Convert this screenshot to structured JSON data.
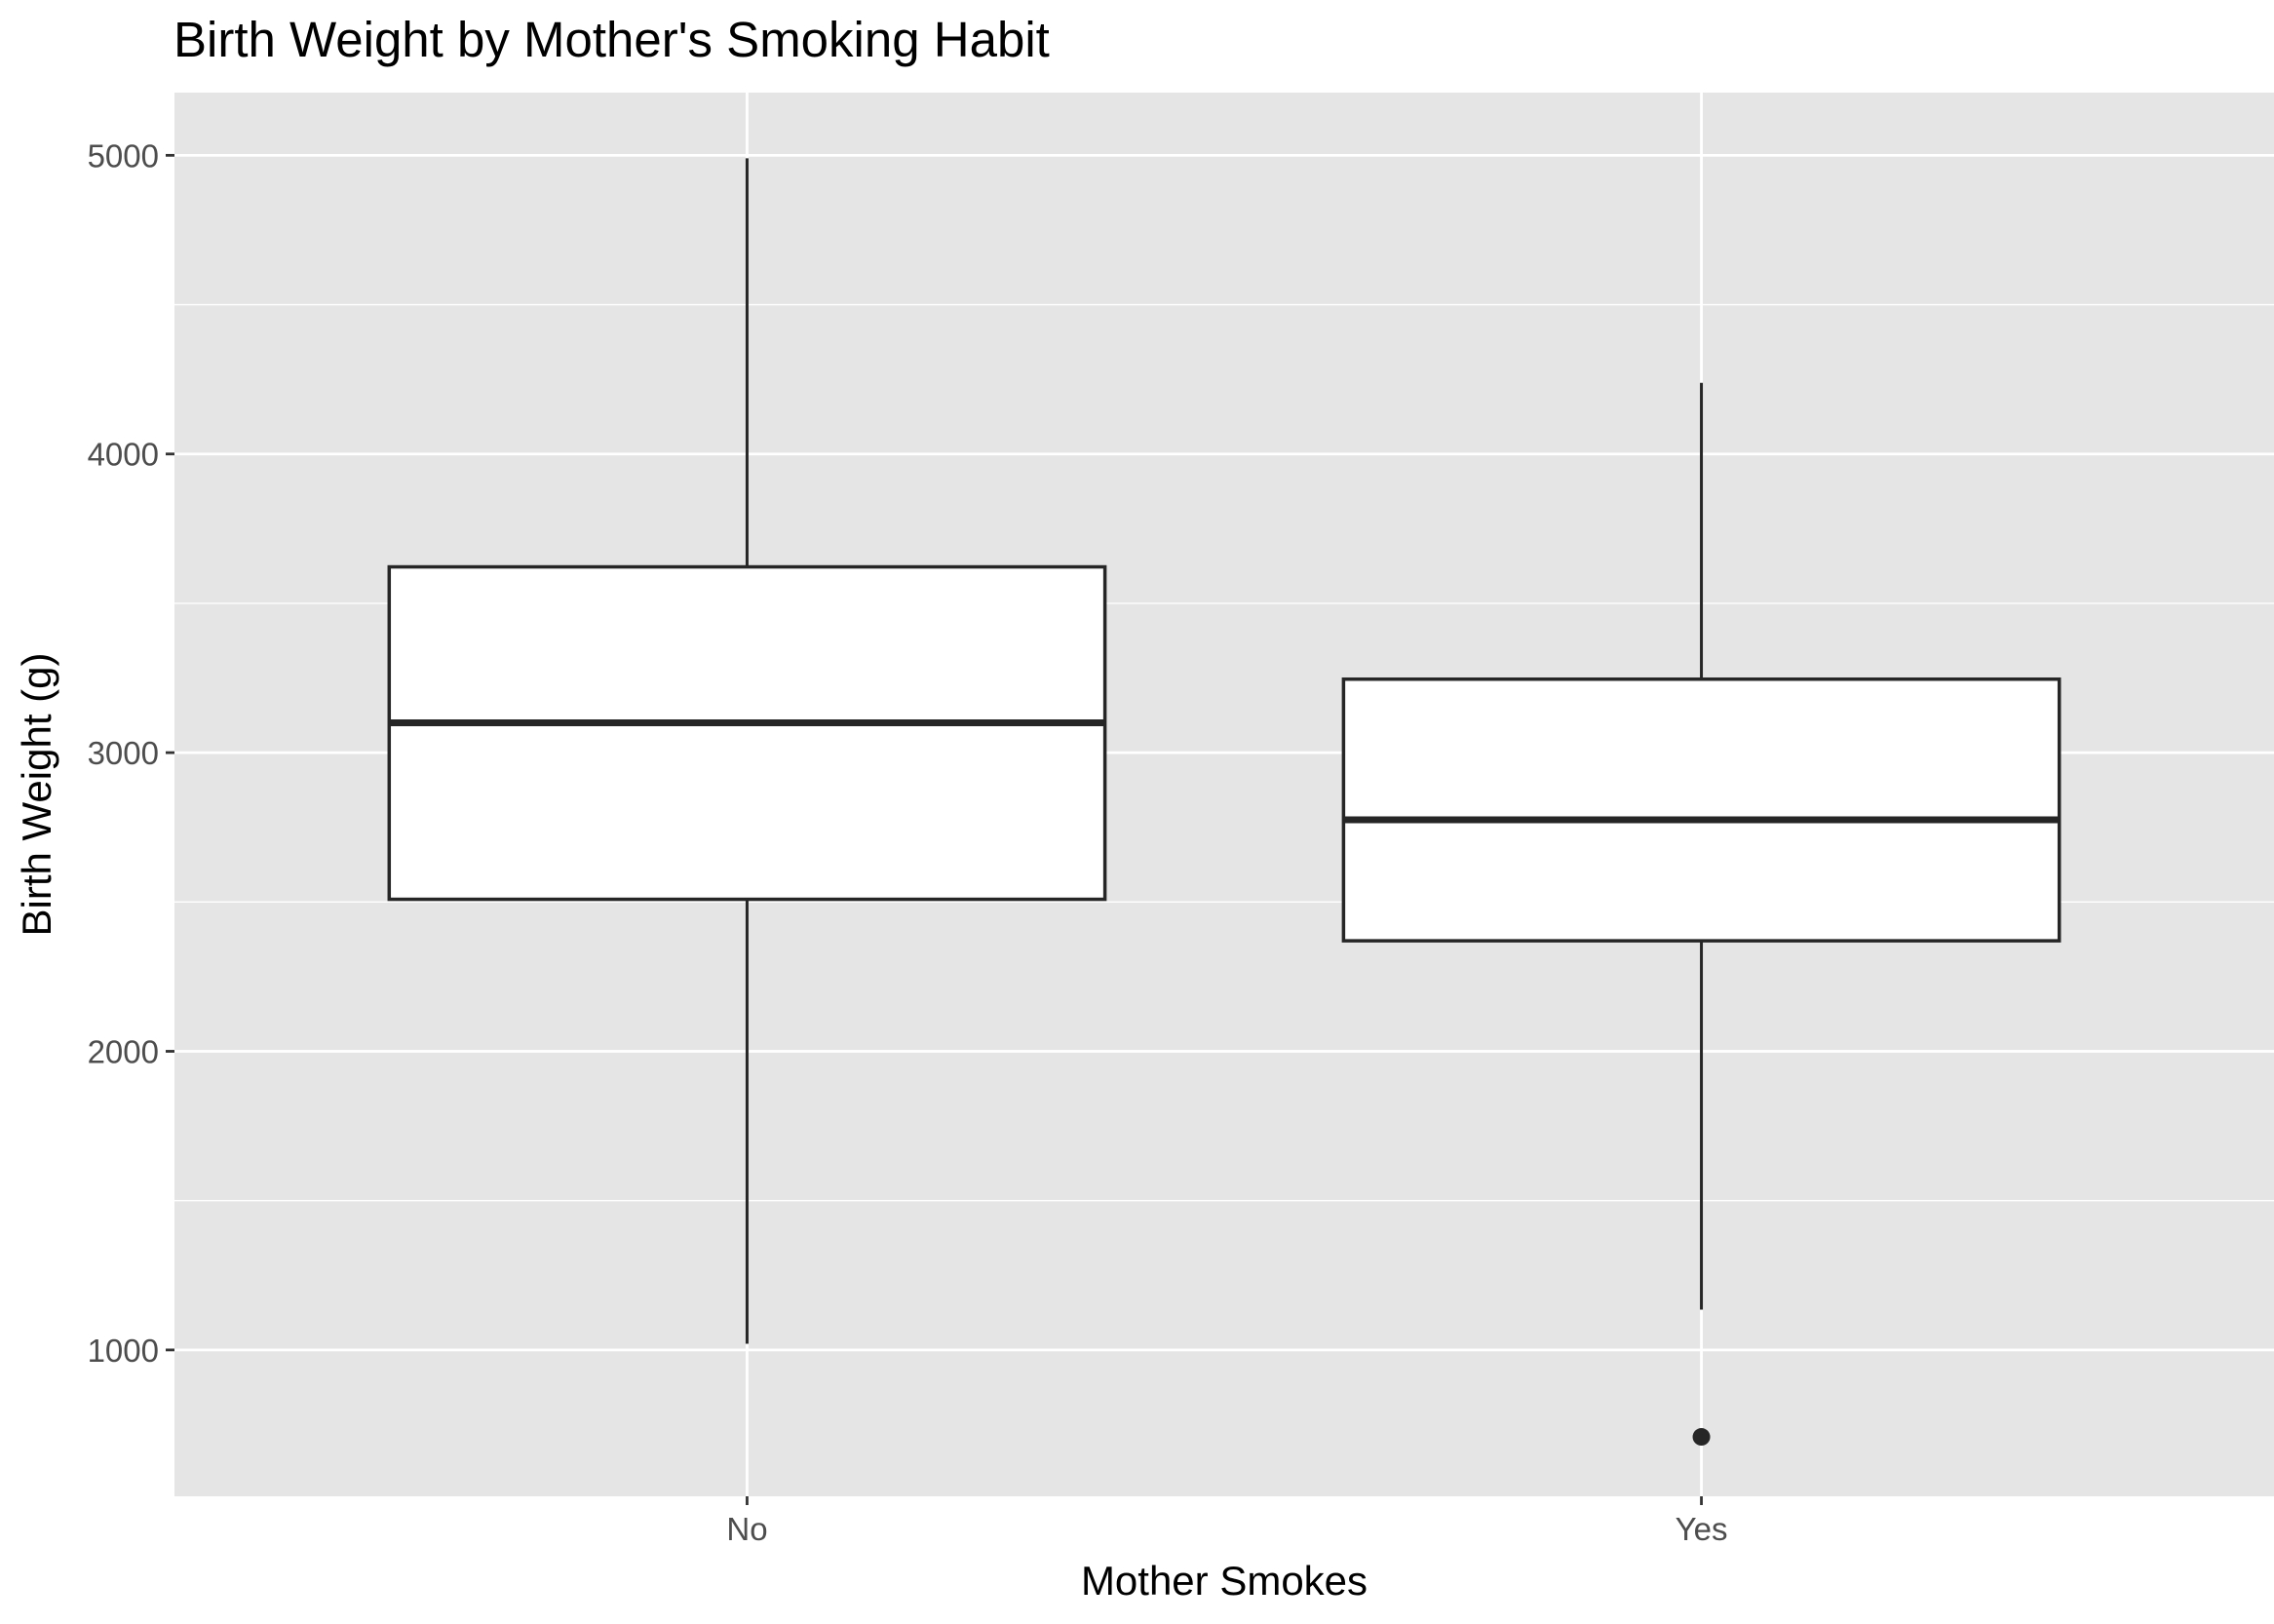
{
  "chart_data": {
    "type": "box",
    "title": "Birth Weight by Mother's Smoking Habit",
    "xlabel": "Mother Smokes",
    "ylabel": "Birth Weight (g)",
    "categories": [
      "No",
      "Yes"
    ],
    "ylim": [
      510,
      5210
    ],
    "y_ticks": [
      1000,
      2000,
      3000,
      4000,
      5000
    ],
    "y_tick_labels": [
      "1000",
      "2000",
      "3000",
      "4000",
      "5000"
    ],
    "boxes": [
      {
        "category": "No",
        "whisker_low": 1021,
        "q1": 2509,
        "median": 3100,
        "q3": 3622,
        "whisker_high": 4990,
        "outliers": []
      },
      {
        "category": "Yes",
        "whisker_low": 1135,
        "q1": 2370,
        "median": 2775,
        "q3": 3246,
        "whisker_high": 4238,
        "outliers": [
          709
        ]
      }
    ],
    "grid": true,
    "legend": "none",
    "colors": {
      "panel_background": "#e5e5e5",
      "grid": "#ffffff",
      "box_fill": "#ffffff",
      "box_stroke": "#262626",
      "tick_text": "#4d4d4d",
      "text": "#000000"
    }
  }
}
